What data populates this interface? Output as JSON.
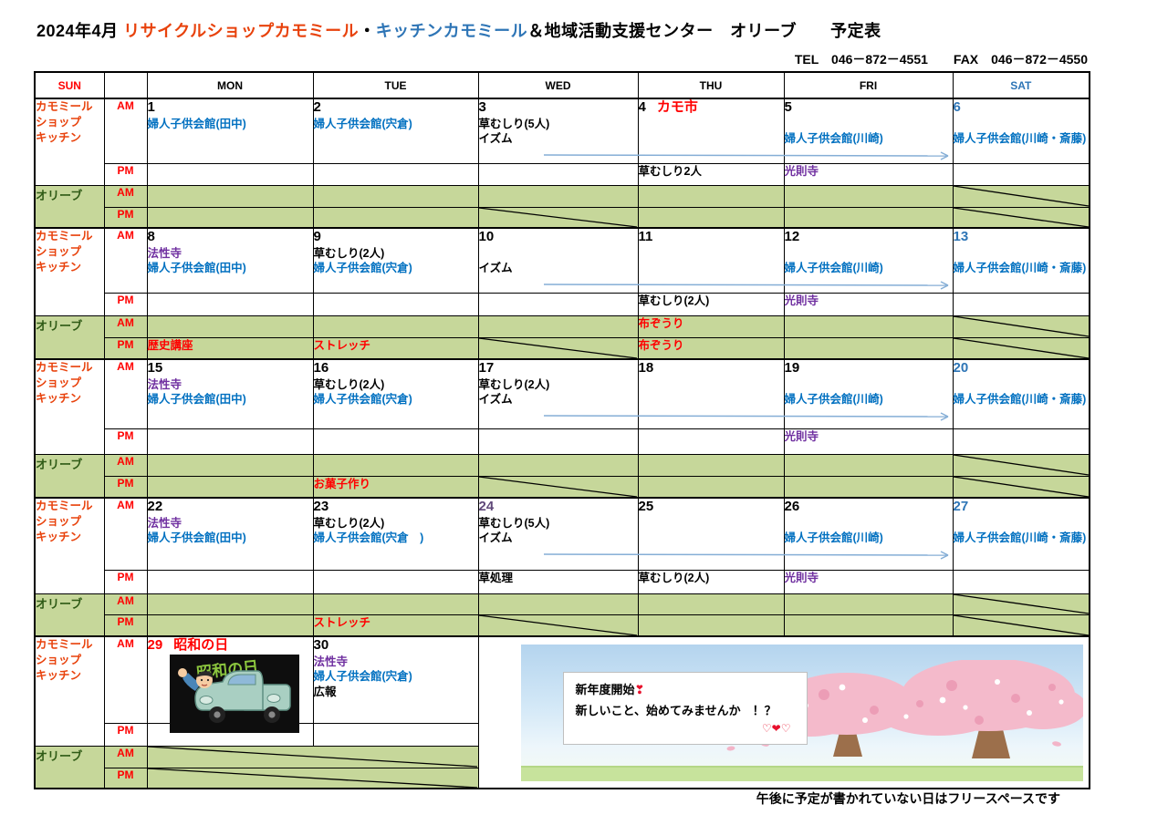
{
  "title": {
    "prefix": "2024年4月",
    "shop1": "リサイクルショップカモミール",
    "sep": "・",
    "shop2": "キッチンカモミール",
    "suffix": "＆地域活動支援センター　オリーブ　　予定表"
  },
  "contact": "TEL　046－872－4551　　FAX　046－872－4550",
  "footer_note": "午後に予定が書かれていない日はフリースペースです",
  "days_header": [
    "SUN",
    "MON",
    "TUE",
    "WED",
    "THU",
    "FRI",
    "SAT"
  ],
  "row_labels": {
    "shop": [
      "カモミール",
      "ショップ",
      "キッチン"
    ],
    "olive": "オリーブ",
    "am": "AM",
    "pm": "PM"
  },
  "colors": {
    "black": "#000000",
    "blue": "#0070C0",
    "purple": "#7030A0",
    "red": "#FF0000",
    "sat": "#2E75B6",
    "num_purple": "#60497A",
    "arrow": "#85AED6",
    "olive_fill": "#C6D79A",
    "shop_orange": "#E8420C"
  },
  "spring_box": {
    "line1": "新年度開始",
    "line1_mark": "❣",
    "line2": "新しいこと、始めてみませんか　！？",
    "line3": "♡❤♡"
  },
  "showa_image_text": "昭和の日",
  "weeks": [
    {
      "heights": {
        "am": 71,
        "pm": 24,
        "oam": 24,
        "opm": 23
      },
      "days": [
        {
          "num": "1",
          "nc": "black",
          "am": [
            {
              "t": "婦人子供会館(田中)",
              "c": "blue"
            }
          ]
        },
        {
          "num": "2",
          "nc": "black",
          "am": [
            {
              "t": "婦人子供会館(宍倉)",
              "c": "blue"
            }
          ]
        },
        {
          "num": "3",
          "nc": "black",
          "am": [
            {
              "t": "草むしり(5人)",
              "c": "black"
            },
            {
              "t": "イズム",
              "c": "black"
            }
          ],
          "arrow": true
        },
        {
          "num": "4",
          "nc": "black",
          "extra": {
            "t": "カモ市",
            "c": "red"
          },
          "pm": [
            {
              "t": "草むしり2人",
              "c": "black"
            }
          ]
        },
        {
          "num": "5",
          "nc": "black",
          "am": [
            {
              "t": "",
              "c": "black"
            },
            {
              "t": "婦人子供会館(川崎)",
              "c": "blue"
            }
          ],
          "pm": [
            {
              "t": "光則寺",
              "c": "purple"
            }
          ]
        },
        {
          "num": "6",
          "nc": "sat",
          "am": [
            {
              "t": "",
              "c": "black"
            },
            {
              "t": "婦人子供会館(川崎・斎藤)",
              "c": "blue"
            }
          ]
        }
      ],
      "olive_am": [
        null,
        null,
        null,
        null,
        null,
        null
      ],
      "olive_pm": [
        null,
        null,
        null,
        null,
        null,
        null
      ],
      "diag_oam": [
        5
      ],
      "diag_opm": [
        2,
        5
      ]
    },
    {
      "heights": {
        "am": 71,
        "pm": 25,
        "oam": 24,
        "opm": 24
      },
      "days": [
        {
          "num": "8",
          "nc": "black",
          "am": [
            {
              "t": "法性寺",
              "c": "purple"
            },
            {
              "t": "婦人子供会館(田中)",
              "c": "blue"
            }
          ]
        },
        {
          "num": "9",
          "nc": "black",
          "am": [
            {
              "t": "草むしり(2人)",
              "c": "black"
            },
            {
              "t": "婦人子供会館(宍倉)",
              "c": "blue"
            }
          ]
        },
        {
          "num": "10",
          "nc": "black",
          "am": [
            {
              "t": "",
              "c": "black"
            },
            {
              "t": "イズム",
              "c": "black"
            }
          ],
          "arrow": true
        },
        {
          "num": "11",
          "nc": "black",
          "pm": [
            {
              "t": "草むしり(2人)",
              "c": "black"
            }
          ]
        },
        {
          "num": "12",
          "nc": "black",
          "am": [
            {
              "t": "",
              "c": "black"
            },
            {
              "t": "婦人子供会館(川崎)",
              "c": "blue"
            }
          ],
          "pm": [
            {
              "t": "光則寺",
              "c": "purple"
            }
          ]
        },
        {
          "num": "13",
          "nc": "sat",
          "am": [
            {
              "t": "",
              "c": "black"
            },
            {
              "t": "婦人子供会館(川崎・斎藤)",
              "c": "blue"
            }
          ]
        }
      ],
      "olive_am": [
        null,
        null,
        null,
        {
          "t": "布ぞうり",
          "c": "red"
        },
        null,
        null
      ],
      "olive_pm": [
        {
          "t": "歴史講座",
          "c": "red"
        },
        {
          "t": "ストレッチ",
          "c": "red"
        },
        null,
        {
          "t": "布ぞうり",
          "c": "red"
        },
        null,
        null
      ],
      "diag_oam": [
        5
      ],
      "diag_opm": [
        2,
        5
      ]
    },
    {
      "heights": {
        "am": 76,
        "pm": 28,
        "oam": 24,
        "opm": 24
      },
      "days": [
        {
          "num": "15",
          "nc": "black",
          "am": [
            {
              "t": "法性寺",
              "c": "purple"
            },
            {
              "t": "婦人子供会館(田中)",
              "c": "blue"
            }
          ]
        },
        {
          "num": "16",
          "nc": "black",
          "am": [
            {
              "t": "草むしり(2人)",
              "c": "black"
            },
            {
              "t": "婦人子供会館(宍倉)",
              "c": "blue"
            }
          ]
        },
        {
          "num": "17",
          "nc": "black",
          "am": [
            {
              "t": "草むしり(2人)",
              "c": "black"
            },
            {
              "t": "イズム",
              "c": "black"
            }
          ],
          "arrow": true
        },
        {
          "num": "18",
          "nc": "black"
        },
        {
          "num": "19",
          "nc": "black",
          "am": [
            {
              "t": "",
              "c": "black"
            },
            {
              "t": "婦人子供会館(川崎)",
              "c": "blue"
            }
          ],
          "pm": [
            {
              "t": "光則寺",
              "c": "purple"
            }
          ]
        },
        {
          "num": "20",
          "nc": "sat",
          "am": [
            {
              "t": "",
              "c": "black"
            },
            {
              "t": "婦人子供会館(川崎・斎藤)",
              "c": "blue"
            }
          ]
        }
      ],
      "olive_am": [
        null,
        null,
        null,
        null,
        null,
        null
      ],
      "olive_pm": [
        null,
        {
          "t": "お菓子作り",
          "c": "red"
        },
        null,
        null,
        null,
        null
      ],
      "diag_oam": [
        5
      ],
      "diag_opm": [
        2,
        5
      ]
    },
    {
      "heights": {
        "am": 79,
        "pm": 26,
        "oam": 23,
        "opm": 24
      },
      "days": [
        {
          "num": "22",
          "nc": "black",
          "am": [
            {
              "t": "法性寺",
              "c": "purple"
            },
            {
              "t": "婦人子供会館(田中)",
              "c": "blue"
            }
          ]
        },
        {
          "num": "23",
          "nc": "black",
          "am": [
            {
              "t": "草むしり(2人)",
              "c": "black"
            },
            {
              "t": "婦人子供会館(宍倉　)",
              "c": "blue"
            }
          ]
        },
        {
          "num": "24",
          "nc": "num_purple",
          "am": [
            {
              "t": "草むしり(5人)",
              "c": "black"
            },
            {
              "t": "イズム",
              "c": "black"
            }
          ],
          "arrow": true,
          "pm": [
            {
              "t": "草処理",
              "c": "black"
            }
          ]
        },
        {
          "num": "25",
          "nc": "black",
          "pm": [
            {
              "t": "草むしり(2人)",
              "c": "black"
            }
          ]
        },
        {
          "num": "26",
          "nc": "black",
          "am": [
            {
              "t": "",
              "c": "black"
            },
            {
              "t": "婦人子供会館(川崎)",
              "c": "blue"
            }
          ],
          "pm": [
            {
              "t": "光則寺",
              "c": "purple"
            }
          ]
        },
        {
          "num": "27",
          "nc": "sat",
          "am": [
            {
              "t": "",
              "c": "black"
            },
            {
              "t": "婦人子供会館(川崎・斎藤)",
              "c": "blue"
            }
          ]
        }
      ],
      "olive_am": [
        null,
        null,
        null,
        null,
        null,
        null
      ],
      "olive_pm": [
        null,
        {
          "t": "ストレッチ",
          "c": "red"
        },
        null,
        null,
        null,
        null
      ],
      "diag_oam": [
        5
      ],
      "diag_opm": [
        2,
        5
      ]
    },
    {
      "special": true,
      "heights": {
        "am": 95,
        "pm": 25,
        "oam": 24,
        "opm": 23
      },
      "days": [
        {
          "num": "29",
          "nc": "red",
          "extra": {
            "t": "昭和の日",
            "c": "red"
          },
          "showa": true
        },
        {
          "num": "30",
          "nc": "black",
          "am": [
            {
              "t": "法性寺",
              "c": "purple"
            },
            {
              "t": "婦人子供会館(宍倉)",
              "c": "blue"
            },
            {
              "t": "広報",
              "c": "black"
            }
          ]
        }
      ]
    }
  ]
}
